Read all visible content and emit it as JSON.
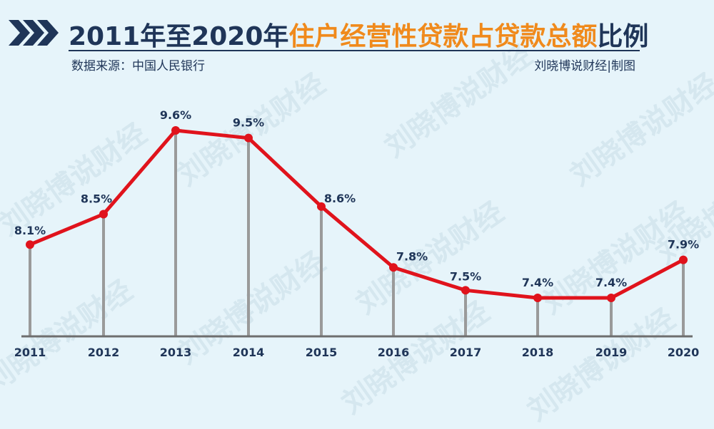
{
  "header": {
    "title_prefix": "2011年至2020年",
    "title_highlight": "住户经营性贷款占贷款总额",
    "title_suffix": "比例",
    "source": "数据来源：中国人民银行",
    "credit": "刘晓博说财经|制图",
    "chevron_color": "#1f3558",
    "highlight_color": "#f08a1c"
  },
  "watermark": {
    "text": "刘晓博说财经"
  },
  "chart_data": {
    "type": "line",
    "x": [
      "2011",
      "2012",
      "2013",
      "2014",
      "2015",
      "2016",
      "2017",
      "2018",
      "2019",
      "2020"
    ],
    "series": [
      {
        "values": [
          8.1,
          8.5,
          9.6,
          9.5,
          8.6,
          7.8,
          7.5,
          7.4,
          7.4,
          7.9
        ],
        "labels": [
          "8.1%",
          "8.5%",
          "9.6%",
          "9.5%",
          "8.6%",
          "7.8%",
          "7.5%",
          "7.4%",
          "7.4%",
          "7.9%"
        ],
        "color": "#e0131c"
      }
    ],
    "ylim": [
      7.4,
      9.6
    ],
    "droplines": true,
    "dropline_color": "#9a9a9a",
    "axis_color": "#6e6e6e",
    "label_color": "#1f3558"
  }
}
